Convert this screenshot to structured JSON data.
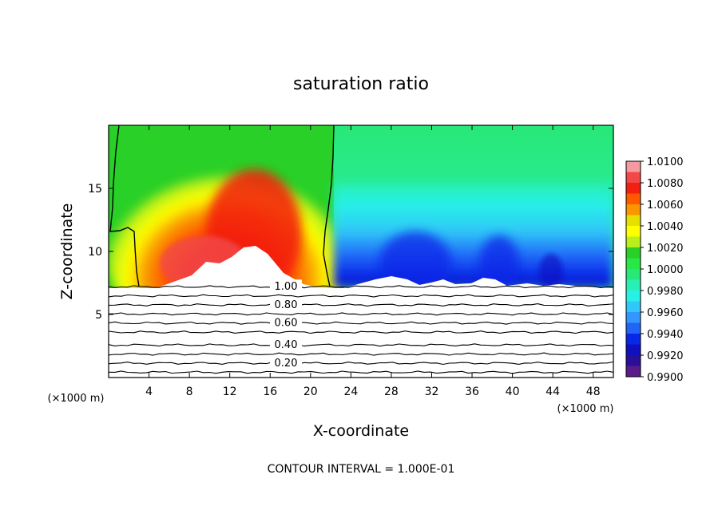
{
  "chart_data": {
    "type": "heatmap",
    "title": "saturation ratio",
    "xlabel": "X-coordinate",
    "ylabel": "Z-coordinate",
    "x_unit": "(×1000 m)",
    "y_unit": "(×1000 m)",
    "xlim": [
      0,
      50
    ],
    "ylim": [
      0,
      20
    ],
    "x_ticks": [
      "4",
      "8",
      "12",
      "16",
      "20",
      "24",
      "28",
      "32",
      "36",
      "40",
      "44",
      "48"
    ],
    "y_ticks": [
      "5",
      "10",
      "15"
    ],
    "colorbar": {
      "range": [
        0.99,
        1.01
      ],
      "ticks": [
        "1.0100",
        "1.0080",
        "1.0060",
        "1.0040",
        "1.0020",
        "1.0000",
        "0.9980",
        "0.9960",
        "0.9940",
        "0.9920",
        "0.9900"
      ],
      "colors": [
        "#f69aa2",
        "#f24848",
        "#f31f10",
        "#ff5a00",
        "#fa9600",
        "#e5e000",
        "#ffff00",
        "#b8f01a",
        "#28d028",
        "#28e848",
        "#28e878",
        "#28f0b4",
        "#28f0e8",
        "#30c8f8",
        "#3496ff",
        "#2064f8",
        "#0828e8",
        "#1010c0",
        "#2a0f9a",
        "#5a1a8a"
      ]
    },
    "contour_labels": [
      "1.00",
      "0.80",
      "0.60",
      "0.40",
      "0.20"
    ],
    "contour_levels": [
      1.0,
      0.9,
      0.8,
      0.7,
      0.6,
      0.5,
      0.4,
      0.3,
      0.2,
      0.1
    ],
    "cloud_base_z": 7.2,
    "contour_interval_text": "CONTOUR INTERVAL = 1.000E-01"
  }
}
